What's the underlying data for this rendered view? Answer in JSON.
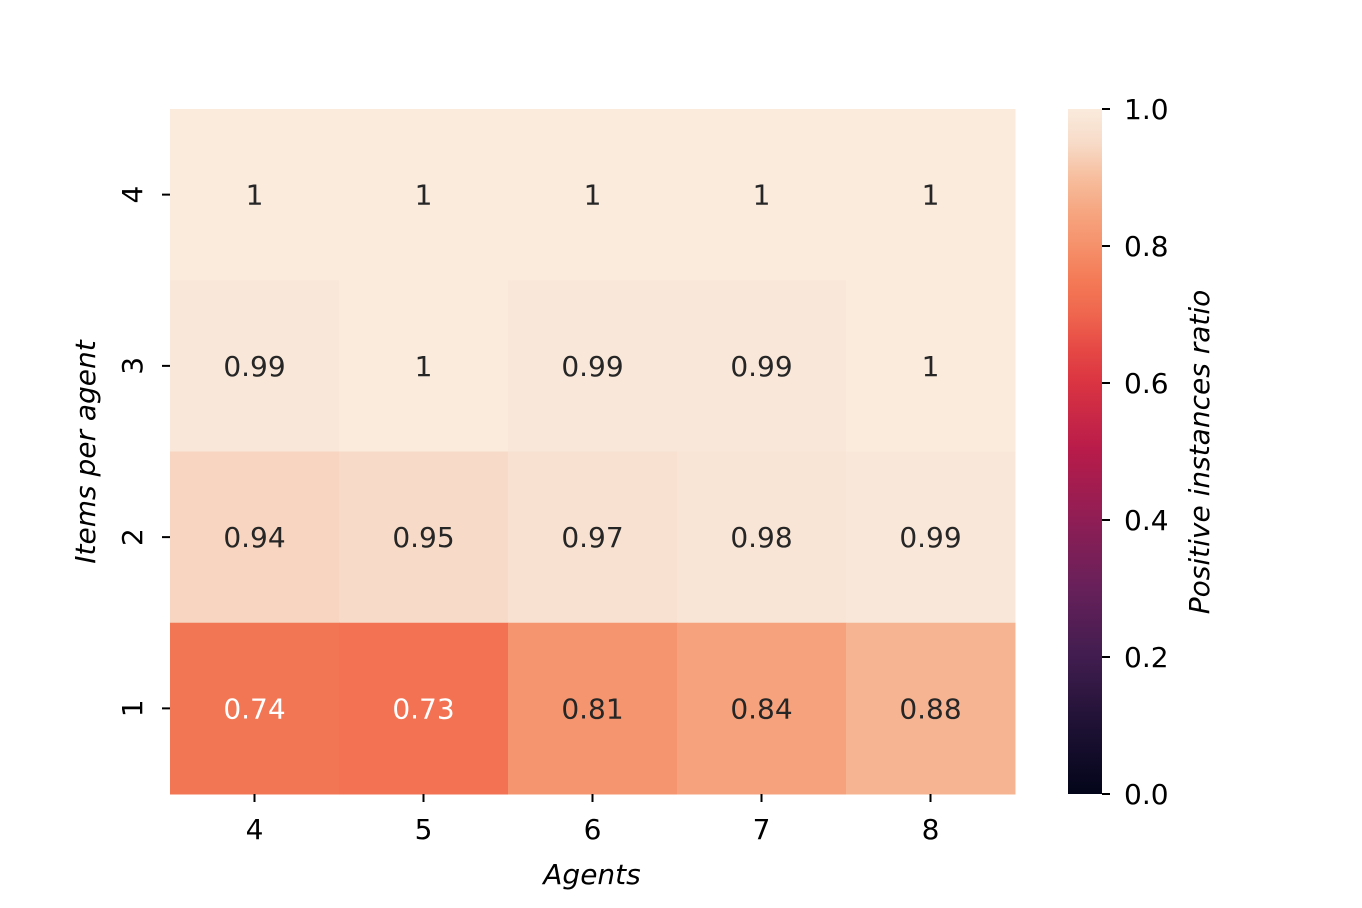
{
  "chart_data": {
    "type": "heatmap",
    "xlabel": "Agents",
    "ylabel": "Items per agent",
    "x_categories": [
      "4",
      "5",
      "6",
      "7",
      "8"
    ],
    "y_categories": [
      "4",
      "3",
      "2",
      "1"
    ],
    "values": [
      [
        1,
        1,
        1,
        1,
        1
      ],
      [
        0.99,
        1,
        0.99,
        0.99,
        1
      ],
      [
        0.94,
        0.95,
        0.97,
        0.98,
        0.99
      ],
      [
        0.74,
        0.73,
        0.81,
        0.84,
        0.88
      ]
    ],
    "cell_labels": [
      [
        "1",
        "1",
        "1",
        "1",
        "1"
      ],
      [
        "0.99",
        "1",
        "0.99",
        "0.99",
        "1"
      ],
      [
        "0.94",
        "0.95",
        "0.97",
        "0.98",
        "0.99"
      ],
      [
        "0.74",
        "0.73",
        "0.81",
        "0.84",
        "0.88"
      ]
    ],
    "colorbar": {
      "label": "Positive instances ratio",
      "range": [
        0.0,
        1.0
      ],
      "ticks": [
        "0.0",
        "0.2",
        "0.4",
        "0.6",
        "0.8",
        "1.0"
      ],
      "colormap": "rocket"
    },
    "grid": false,
    "legend": "colorbar-right"
  }
}
